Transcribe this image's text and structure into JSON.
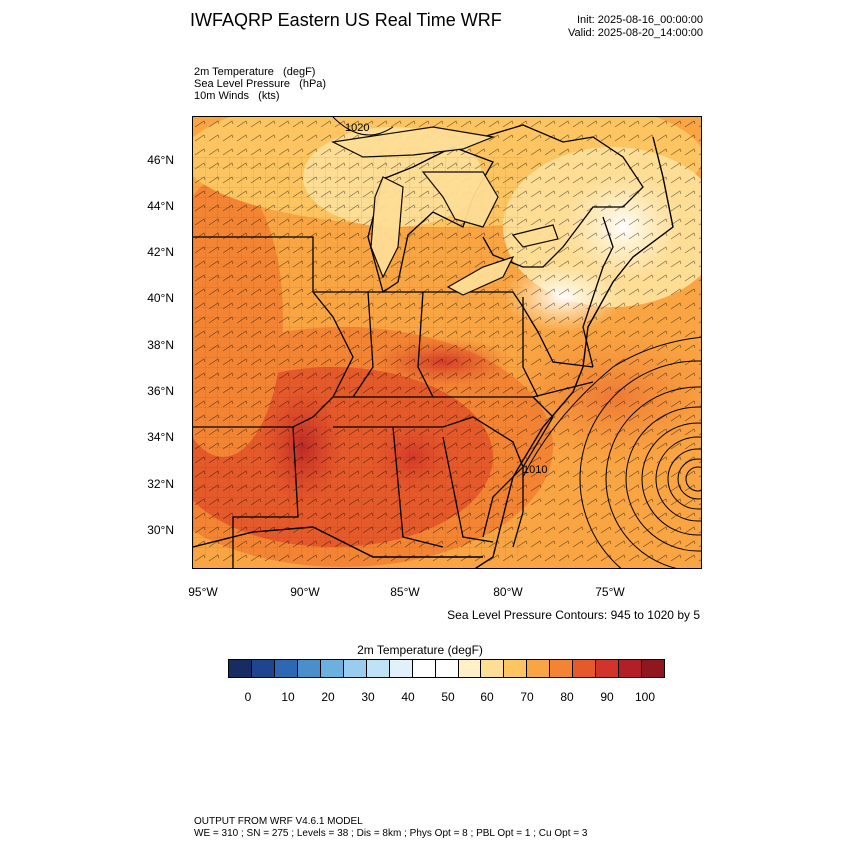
{
  "header": {
    "title": "IWFAQRP Eastern US Real Time WRF",
    "init": "Init: 2025-08-16_00:00:00",
    "valid": "Valid: 2025-08-20_14:00:00"
  },
  "fields": [
    "2m Temperature   (degF)",
    "Sea Level Pressure   (hPa)",
    "10m Winds   (kts)"
  ],
  "map": {
    "lat_labels": [
      "46°N",
      "44°N",
      "42°N",
      "40°N",
      "38°N",
      "36°N",
      "34°N",
      "32°N",
      "30°N"
    ],
    "lon_labels": [
      "95°W",
      "90°W",
      "85°W",
      "80°W",
      "75°W"
    ],
    "contour_labels": [
      "1020",
      "1010"
    ],
    "slp_note": "Sea Level Pressure Contours: 945 to 1020 by 5"
  },
  "colorbar": {
    "title": "2m Temperature  (degF)",
    "labels": [
      "0",
      "10",
      "20",
      "30",
      "40",
      "50",
      "60",
      "70",
      "80",
      "90",
      "100"
    ],
    "colors": [
      "#172c63",
      "#1f4590",
      "#2c68b3",
      "#4a8fcc",
      "#6cb0e0",
      "#99cdf0",
      "#bfe2f6",
      "#e0f1fb",
      "#ffffff",
      "#ffffff",
      "#fff0c8",
      "#fedd95",
      "#fdc561",
      "#f9a543",
      "#f28434",
      "#e55a2b",
      "#d0342a",
      "#b31f26",
      "#8e1720"
    ]
  },
  "footer": {
    "line1": "OUTPUT FROM WRF V4.6.1 MODEL",
    "line2": "WE = 310 ; SN = 275 ; Levels = 38 ; Dis = 8km ; Phys Opt = 8 ; PBL Opt = 1 ; Cu Opt = 3"
  }
}
